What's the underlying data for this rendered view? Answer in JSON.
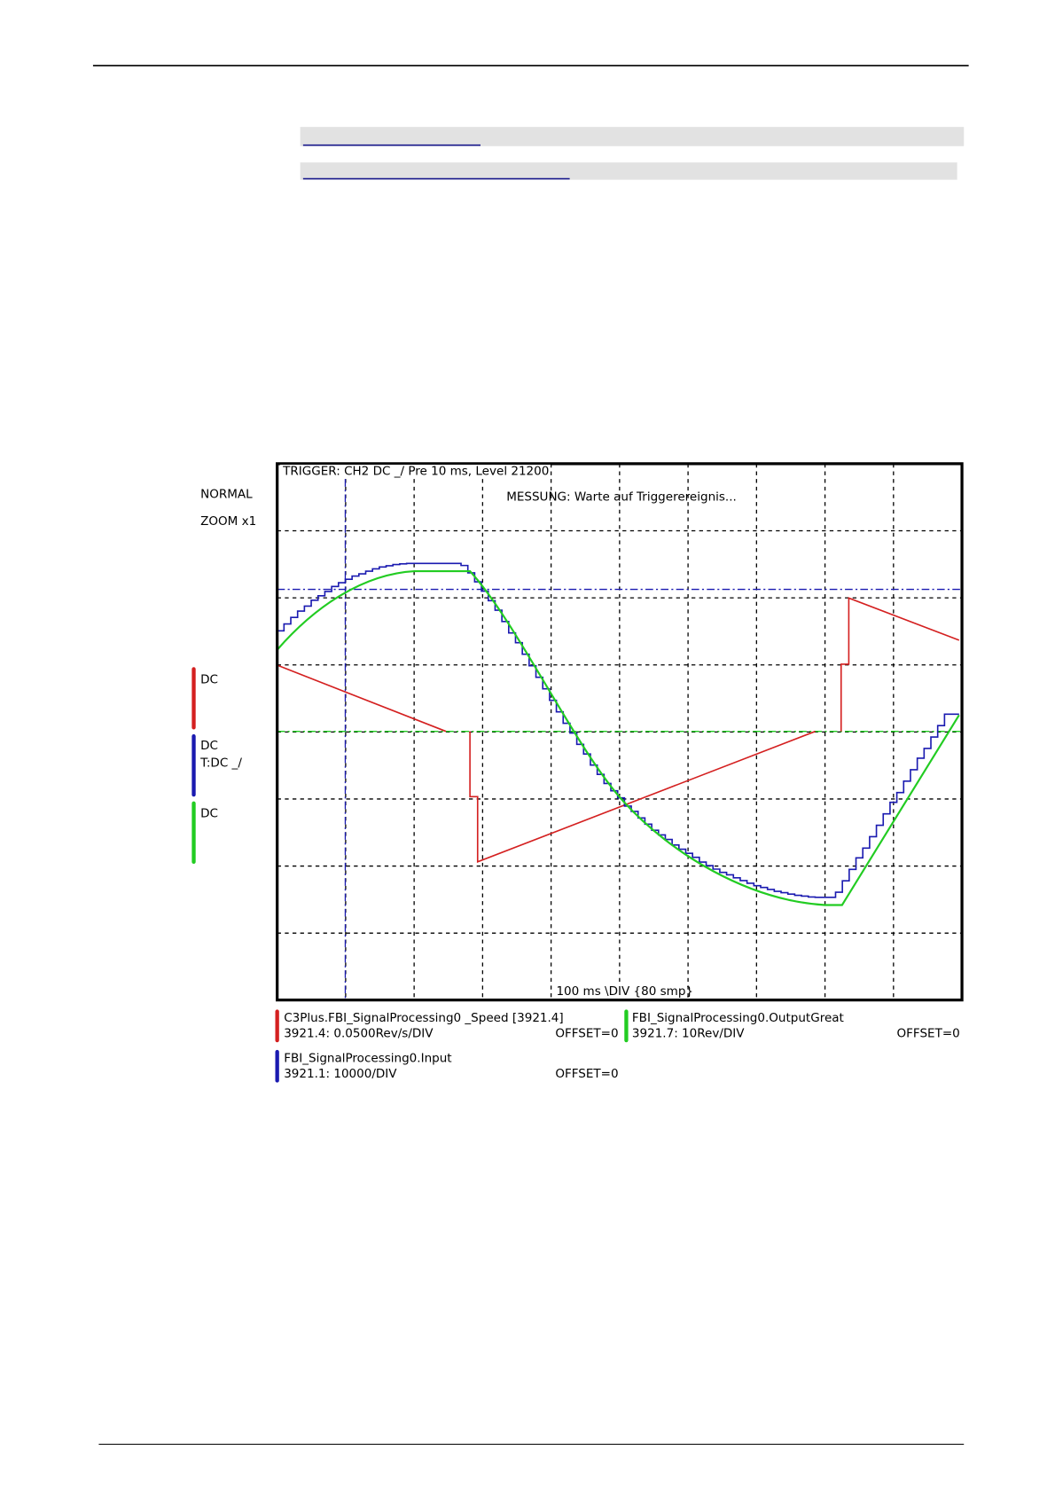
{
  "scope": {
    "trigger": "TRIGGER: CH2 DC _/ Pre 10 ms, Level 21200",
    "status": "MESSUNG: Warte auf Triggerereignis...",
    "timebase": "100 ms \\DIV {80 smp}",
    "mode": "NORMAL",
    "zoom": "ZOOM x1",
    "channels": [
      {
        "coupling": "DC"
      },
      {
        "coupling": "DC",
        "trigger": "T:DC _/"
      },
      {
        "coupling": "DC"
      }
    ],
    "legend": [
      {
        "name": "C3Plus.FBI_SignalProcessing0 _Speed [3921.4]",
        "scale": "3921.4:  0.0500Rev/s/DIV",
        "offset": "OFFSET=0"
      },
      {
        "name": "FBI_SignalProcessing0.OutputGreat",
        "scale": "3921.7:  10Rev/DIV",
        "offset": "OFFSET=0"
      },
      {
        "name": "FBI_SignalProcessing0.Input",
        "scale": "3921.1:  10000/DIV",
        "offset": "OFFSET=0"
      }
    ]
  }
}
